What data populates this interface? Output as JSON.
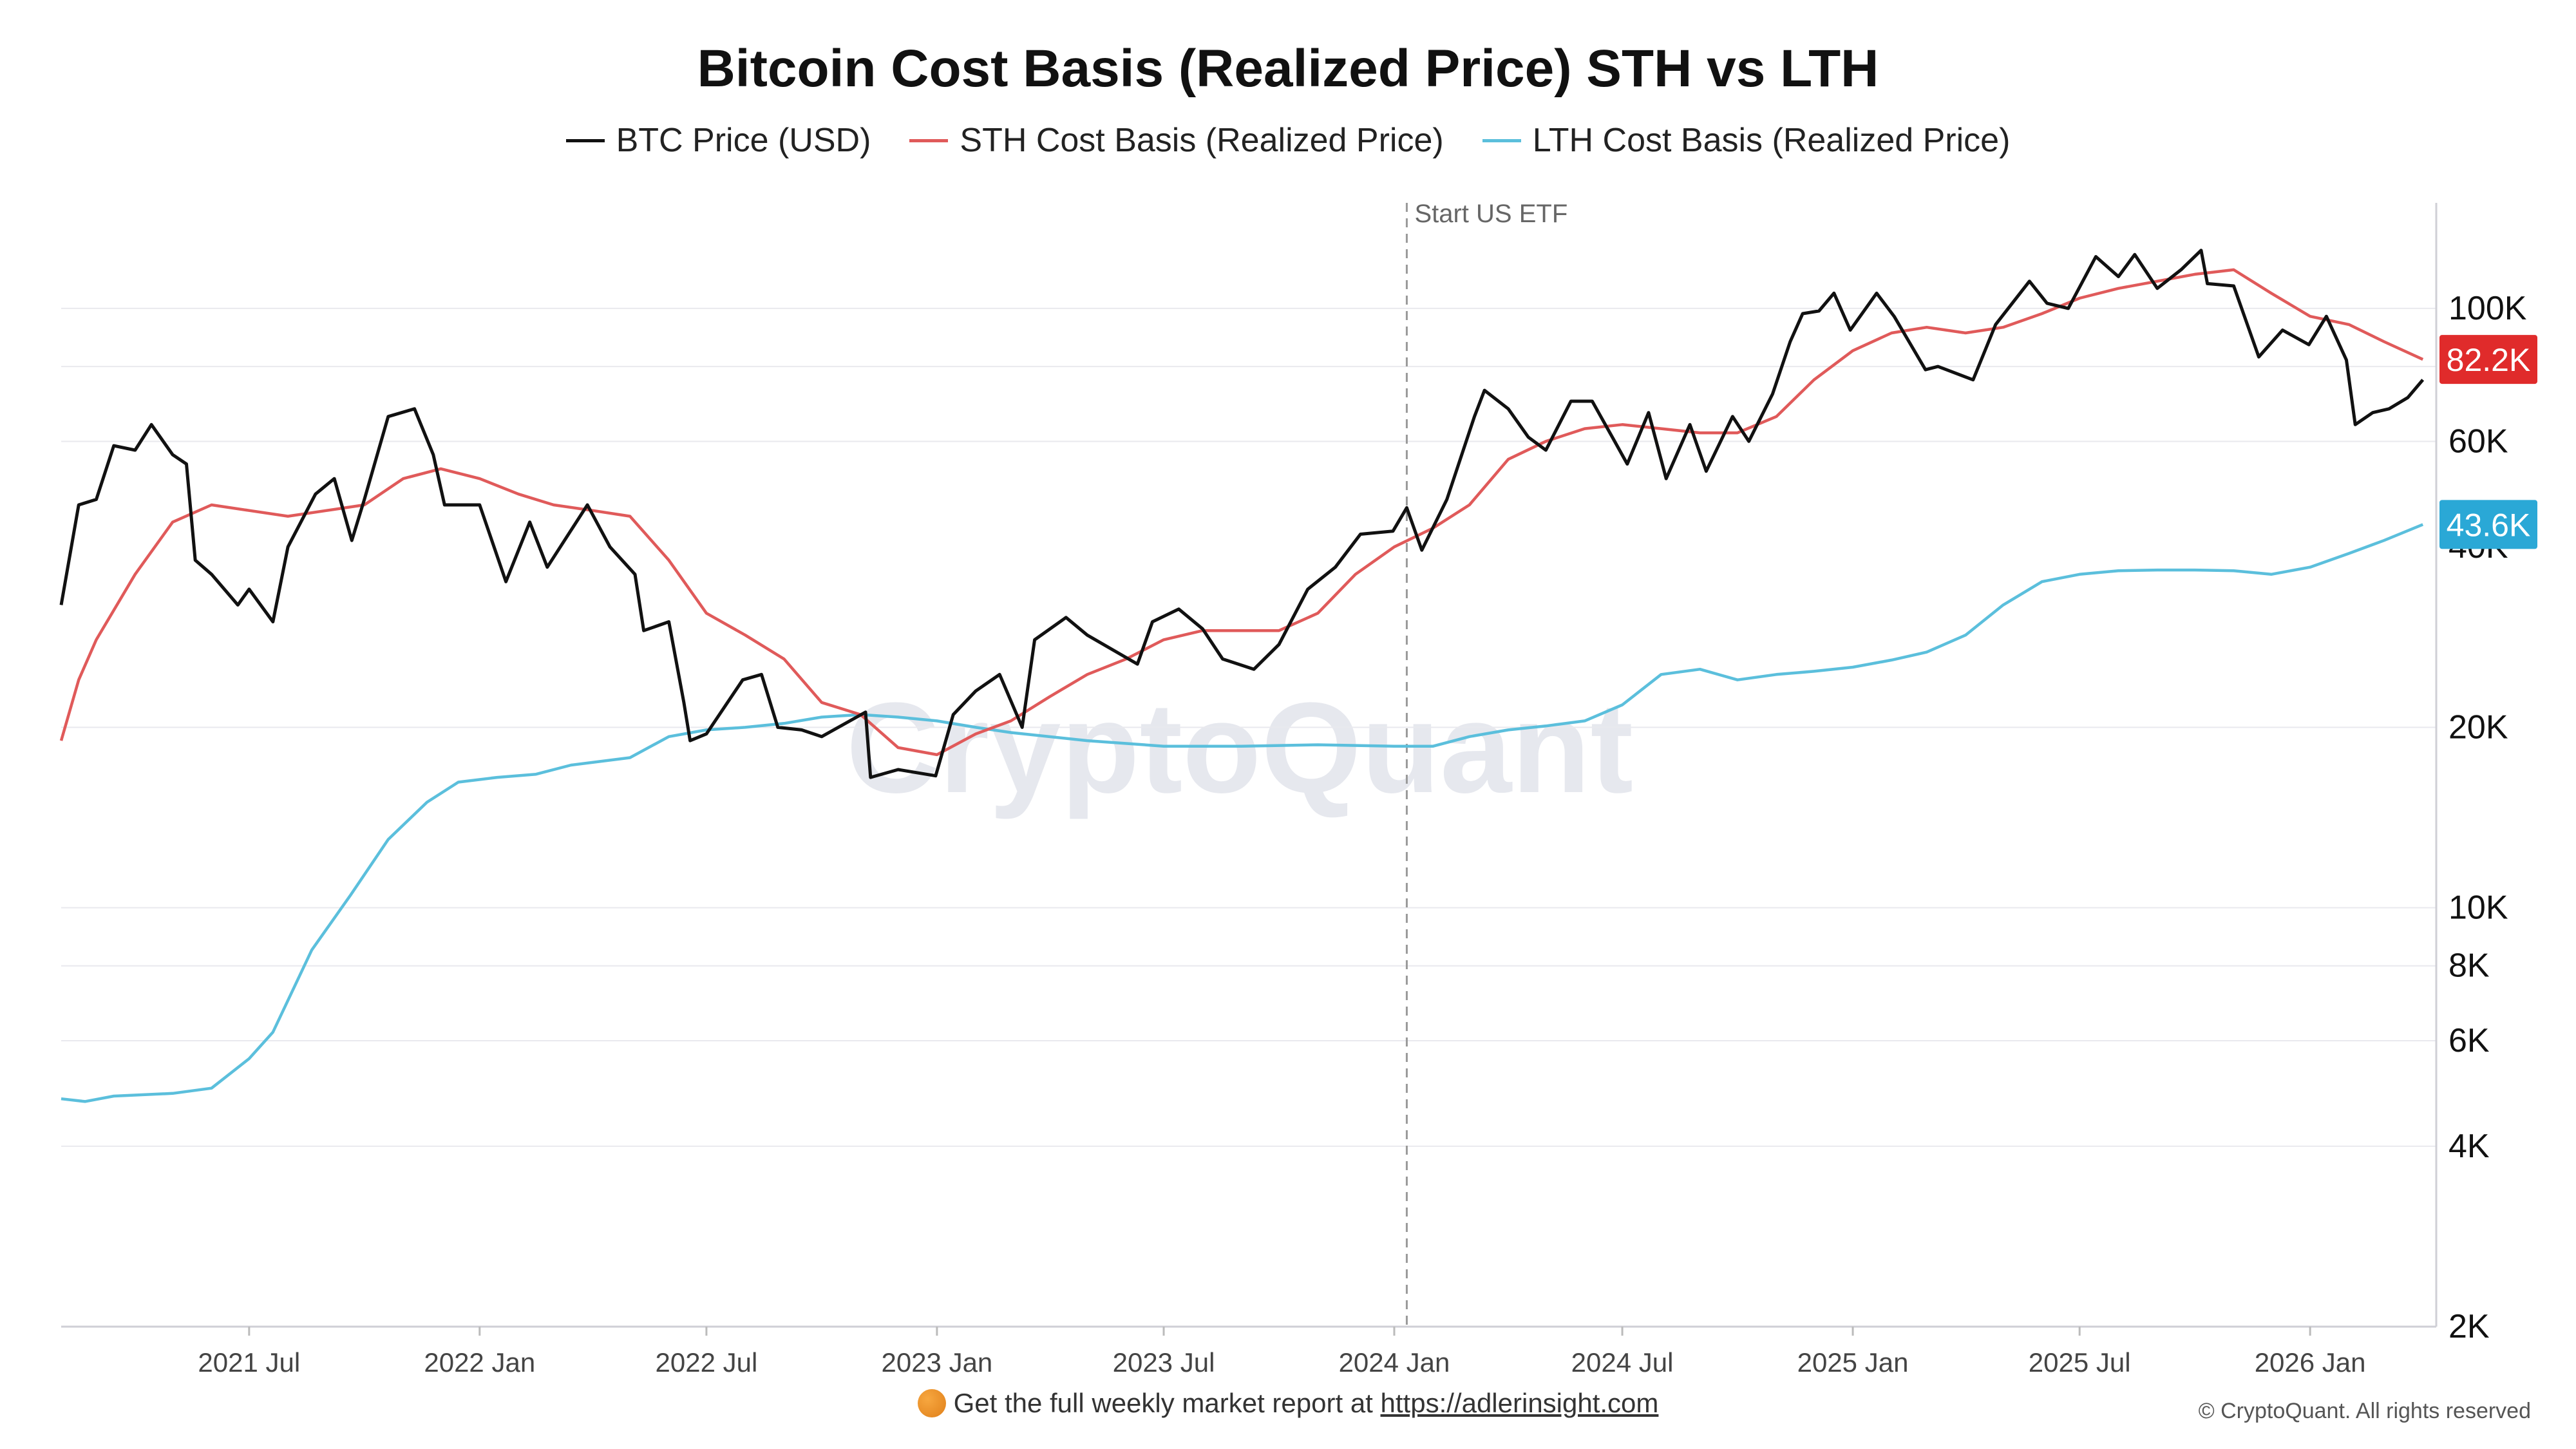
{
  "title": "Bitcoin Cost Basis (Realized Price) STH vs LTH",
  "legend": [
    {
      "label": "BTC Price (USD)",
      "color": "#111111"
    },
    {
      "label": "STH Cost Basis (Realized Price)",
      "color": "#e05a5a"
    },
    {
      "label": "LTH Cost Basis (Realized Price)",
      "color": "#5bbfdc"
    }
  ],
  "footer": {
    "note": "Get the full weekly market report at",
    "link": "https://adlerinsight.com",
    "icon": "bitcoin-coin-icon",
    "copyright": "© CryptoQuant. All rights reserved"
  },
  "watermark": "CryptoQuant",
  "chart_data": {
    "type": "line",
    "y_scale": "log",
    "ylim": [
      2000,
      150000
    ],
    "xlim": [
      "2021-02-01",
      "2026-04-05"
    ],
    "x_ticks": [
      {
        "date": "2021-07-01",
        "label": "2021 Jul"
      },
      {
        "date": "2022-01-01",
        "label": "2022 Jan"
      },
      {
        "date": "2022-07-01",
        "label": "2022 Jul"
      },
      {
        "date": "2023-01-01",
        "label": "2023 Jan"
      },
      {
        "date": "2023-07-01",
        "label": "2023 Jul"
      },
      {
        "date": "2024-01-01",
        "label": "2024 Jan"
      },
      {
        "date": "2024-07-01",
        "label": "2024 Jul"
      },
      {
        "date": "2025-01-01",
        "label": "2025 Jan"
      },
      {
        "date": "2025-07-01",
        "label": "2025 Jul"
      },
      {
        "date": "2026-01-01",
        "label": "2026 Jan"
      }
    ],
    "y_ticks": [
      {
        "value": 100000,
        "label": "100K"
      },
      {
        "value": 60000,
        "label": "60K"
      },
      {
        "value": 40000,
        "label": "40K"
      },
      {
        "value": 20000,
        "label": "20K"
      },
      {
        "value": 10000,
        "label": "10K"
      },
      {
        "value": 8000,
        "label": "8K"
      },
      {
        "value": 6000,
        "label": "6K"
      },
      {
        "value": 4000,
        "label": "4K"
      },
      {
        "value": 2000,
        "label": "2K"
      }
    ],
    "gridlines": [
      100000,
      80000,
      60000,
      20000,
      10000,
      8000,
      6000,
      4000
    ],
    "annotation": {
      "date": "2024-01-11",
      "label": "Start US ETF"
    },
    "end_labels": [
      {
        "series": "STH Cost Basis (Realized Price)",
        "value": 82200,
        "label": "82.2K",
        "color": "#e02b2b"
      },
      {
        "series": "LTH Cost Basis (Realized Price)",
        "value": 43600,
        "label": "43.6K",
        "color": "#2aa8d6"
      }
    ],
    "series": [
      {
        "name": "BTC Price (USD)",
        "color": "#111111",
        "points": [
          [
            "2021-02-01",
            32000
          ],
          [
            "2021-02-15",
            47000
          ],
          [
            "2021-03-01",
            48000
          ],
          [
            "2021-03-15",
            59000
          ],
          [
            "2021-04-01",
            58000
          ],
          [
            "2021-04-14",
            64000
          ],
          [
            "2021-05-01",
            57000
          ],
          [
            "2021-05-12",
            55000
          ],
          [
            "2021-05-19",
            38000
          ],
          [
            "2021-06-01",
            36000
          ],
          [
            "2021-06-22",
            32000
          ],
          [
            "2021-07-01",
            34000
          ],
          [
            "2021-07-20",
            30000
          ],
          [
            "2021-08-01",
            40000
          ],
          [
            "2021-08-23",
            49000
          ],
          [
            "2021-09-07",
            52000
          ],
          [
            "2021-09-21",
            41000
          ],
          [
            "2021-10-01",
            48000
          ],
          [
            "2021-10-20",
            66000
          ],
          [
            "2021-11-10",
            68000
          ],
          [
            "2021-11-25",
            57000
          ],
          [
            "2021-12-04",
            47000
          ],
          [
            "2021-12-20",
            47000
          ],
          [
            "2022-01-01",
            47000
          ],
          [
            "2022-01-22",
            35000
          ],
          [
            "2022-02-10",
            44000
          ],
          [
            "2022-02-24",
            37000
          ],
          [
            "2022-03-28",
            47000
          ],
          [
            "2022-04-15",
            40000
          ],
          [
            "2022-05-05",
            36000
          ],
          [
            "2022-05-12",
            29000
          ],
          [
            "2022-06-01",
            30000
          ],
          [
            "2022-06-13",
            22000
          ],
          [
            "2022-06-18",
            19000
          ],
          [
            "2022-07-01",
            19500
          ],
          [
            "2022-07-30",
            24000
          ],
          [
            "2022-08-14",
            24500
          ],
          [
            "2022-08-27",
            20000
          ],
          [
            "2022-09-15",
            19800
          ],
          [
            "2022-10-01",
            19300
          ],
          [
            "2022-11-05",
            21200
          ],
          [
            "2022-11-09",
            16500
          ],
          [
            "2022-12-01",
            17000
          ],
          [
            "2022-12-31",
            16600
          ],
          [
            "2023-01-14",
            21000
          ],
          [
            "2023-02-01",
            23000
          ],
          [
            "2023-02-20",
            24500
          ],
          [
            "2023-03-10",
            20000
          ],
          [
            "2023-03-20",
            28000
          ],
          [
            "2023-04-14",
            30500
          ],
          [
            "2023-05-01",
            28500
          ],
          [
            "2023-06-10",
            25500
          ],
          [
            "2023-06-22",
            30000
          ],
          [
            "2023-07-13",
            31500
          ],
          [
            "2023-08-01",
            29200
          ],
          [
            "2023-08-17",
            26000
          ],
          [
            "2023-09-11",
            25000
          ],
          [
            "2023-10-01",
            27500
          ],
          [
            "2023-10-24",
            34000
          ],
          [
            "2023-11-15",
            37000
          ],
          [
            "2023-12-05",
            42000
          ],
          [
            "2023-12-31",
            42500
          ],
          [
            "2024-01-11",
            46500
          ],
          [
            "2024-01-23",
            39500
          ],
          [
            "2024-02-12",
            48000
          ],
          [
            "2024-03-05",
            66000
          ],
          [
            "2024-03-13",
            73000
          ],
          [
            "2024-04-01",
            68000
          ],
          [
            "2024-04-17",
            61000
          ],
          [
            "2024-05-01",
            58000
          ],
          [
            "2024-05-21",
            70000
          ],
          [
            "2024-06-07",
            70000
          ],
          [
            "2024-06-24",
            60500
          ],
          [
            "2024-07-05",
            55000
          ],
          [
            "2024-07-22",
            67000
          ],
          [
            "2024-08-05",
            52000
          ],
          [
            "2024-08-24",
            64000
          ],
          [
            "2024-09-06",
            53500
          ],
          [
            "2024-09-27",
            66000
          ],
          [
            "2024-10-10",
            60000
          ],
          [
            "2024-10-29",
            72000
          ],
          [
            "2024-11-12",
            88000
          ],
          [
            "2024-11-22",
            98000
          ],
          [
            "2024-12-05",
            99000
          ],
          [
            "2024-12-17",
            106000
          ],
          [
            "2024-12-30",
            92000
          ],
          [
            "2025-01-20",
            106000
          ],
          [
            "2025-02-03",
            97000
          ],
          [
            "2025-02-28",
            79000
          ],
          [
            "2025-03-10",
            80000
          ],
          [
            "2025-04-07",
            76000
          ],
          [
            "2025-04-25",
            94000
          ],
          [
            "2025-05-22",
            111000
          ],
          [
            "2025-06-05",
            102000
          ],
          [
            "2025-06-22",
            100000
          ],
          [
            "2025-07-14",
            122000
          ],
          [
            "2025-08-01",
            113000
          ],
          [
            "2025-08-14",
            123000
          ],
          [
            "2025-09-01",
            108000
          ],
          [
            "2025-09-20",
            116000
          ],
          [
            "2025-10-06",
            125000
          ],
          [
            "2025-10-11",
            110000
          ],
          [
            "2025-11-01",
            109000
          ],
          [
            "2025-11-21",
            83000
          ],
          [
            "2025-12-10",
            92000
          ],
          [
            "2025-12-31",
            87000
          ],
          [
            "2026-01-14",
            97000
          ],
          [
            "2026-01-30",
            82000
          ],
          [
            "2026-02-06",
            64000
          ],
          [
            "2026-02-20",
            67000
          ],
          [
            "2026-03-05",
            68000
          ],
          [
            "2026-03-20",
            71000
          ],
          [
            "2026-04-01",
            76000
          ]
        ]
      },
      {
        "name": "STH Cost Basis (Realized Price)",
        "color": "#e05a5a",
        "points": [
          [
            "2021-02-01",
            19000
          ],
          [
            "2021-02-15",
            24000
          ],
          [
            "2021-03-01",
            28000
          ],
          [
            "2021-04-01",
            36000
          ],
          [
            "2021-05-01",
            44000
          ],
          [
            "2021-06-01",
            47000
          ],
          [
            "2021-07-01",
            46000
          ],
          [
            "2021-08-01",
            45000
          ],
          [
            "2021-09-01",
            46000
          ],
          [
            "2021-10-01",
            47000
          ],
          [
            "2021-11-01",
            52000
          ],
          [
            "2021-12-01",
            54000
          ],
          [
            "2022-01-01",
            52000
          ],
          [
            "2022-02-01",
            49000
          ],
          [
            "2022-03-01",
            47000
          ],
          [
            "2022-04-01",
            46000
          ],
          [
            "2022-05-01",
            45000
          ],
          [
            "2022-06-01",
            38000
          ],
          [
            "2022-07-01",
            31000
          ],
          [
            "2022-08-01",
            28500
          ],
          [
            "2022-09-01",
            26000
          ],
          [
            "2022-10-01",
            22000
          ],
          [
            "2022-11-01",
            21000
          ],
          [
            "2022-12-01",
            18500
          ],
          [
            "2023-01-01",
            18000
          ],
          [
            "2023-02-01",
            19500
          ],
          [
            "2023-03-01",
            20500
          ],
          [
            "2023-04-01",
            22500
          ],
          [
            "2023-05-01",
            24500
          ],
          [
            "2023-06-01",
            26000
          ],
          [
            "2023-07-01",
            28000
          ],
          [
            "2023-08-01",
            29000
          ],
          [
            "2023-09-01",
            29000
          ],
          [
            "2023-10-01",
            29000
          ],
          [
            "2023-11-01",
            31000
          ],
          [
            "2023-12-01",
            36000
          ],
          [
            "2024-01-01",
            40000
          ],
          [
            "2024-02-01",
            43000
          ],
          [
            "2024-03-01",
            47000
          ],
          [
            "2024-04-01",
            56000
          ],
          [
            "2024-05-01",
            60000
          ],
          [
            "2024-06-01",
            63000
          ],
          [
            "2024-07-01",
            64000
          ],
          [
            "2024-08-01",
            63000
          ],
          [
            "2024-09-01",
            62000
          ],
          [
            "2024-10-01",
            62000
          ],
          [
            "2024-11-01",
            66000
          ],
          [
            "2024-12-01",
            76000
          ],
          [
            "2025-01-01",
            85000
          ],
          [
            "2025-02-01",
            91000
          ],
          [
            "2025-03-01",
            93000
          ],
          [
            "2025-04-01",
            91000
          ],
          [
            "2025-05-01",
            93000
          ],
          [
            "2025-06-01",
            98000
          ],
          [
            "2025-07-01",
            104000
          ],
          [
            "2025-08-01",
            108000
          ],
          [
            "2025-09-01",
            111000
          ],
          [
            "2025-10-01",
            114000
          ],
          [
            "2025-11-01",
            116000
          ],
          [
            "2025-12-01",
            106000
          ],
          [
            "2026-01-01",
            97000
          ],
          [
            "2026-02-01",
            94000
          ],
          [
            "2026-03-01",
            88000
          ],
          [
            "2026-04-01",
            82200
          ]
        ]
      },
      {
        "name": "LTH Cost Basis (Realized Price)",
        "color": "#5bbfdc",
        "points": [
          [
            "2021-02-01",
            4800
          ],
          [
            "2021-02-20",
            4750
          ],
          [
            "2021-03-15",
            4850
          ],
          [
            "2021-05-01",
            4900
          ],
          [
            "2021-06-01",
            5000
          ],
          [
            "2021-07-01",
            5600
          ],
          [
            "2021-07-20",
            6200
          ],
          [
            "2021-08-20",
            8500
          ],
          [
            "2021-09-20",
            10500
          ],
          [
            "2021-10-20",
            13000
          ],
          [
            "2021-11-20",
            15000
          ],
          [
            "2021-12-15",
            16200
          ],
          [
            "2022-01-15",
            16500
          ],
          [
            "2022-02-15",
            16700
          ],
          [
            "2022-03-15",
            17300
          ],
          [
            "2022-05-01",
            17800
          ],
          [
            "2022-06-01",
            19300
          ],
          [
            "2022-07-01",
            19800
          ],
          [
            "2022-08-01",
            20000
          ],
          [
            "2022-09-01",
            20300
          ],
          [
            "2022-10-01",
            20800
          ],
          [
            "2022-11-01",
            21000
          ],
          [
            "2022-12-01",
            20800
          ],
          [
            "2023-01-01",
            20500
          ],
          [
            "2023-02-01",
            20000
          ],
          [
            "2023-03-01",
            19600
          ],
          [
            "2023-05-01",
            19000
          ],
          [
            "2023-07-01",
            18600
          ],
          [
            "2023-09-01",
            18600
          ],
          [
            "2023-11-01",
            18700
          ],
          [
            "2024-01-01",
            18600
          ],
          [
            "2024-02-01",
            18600
          ],
          [
            "2024-03-01",
            19300
          ],
          [
            "2024-04-01",
            19800
          ],
          [
            "2024-05-01",
            20100
          ],
          [
            "2024-06-01",
            20500
          ],
          [
            "2024-07-01",
            21800
          ],
          [
            "2024-08-01",
            24500
          ],
          [
            "2024-09-01",
            25000
          ],
          [
            "2024-10-01",
            24000
          ],
          [
            "2024-11-01",
            24500
          ],
          [
            "2024-12-01",
            24800
          ],
          [
            "2025-01-01",
            25200
          ],
          [
            "2025-02-01",
            25900
          ],
          [
            "2025-03-01",
            26700
          ],
          [
            "2025-04-01",
            28500
          ],
          [
            "2025-05-01",
            32000
          ],
          [
            "2025-06-01",
            35000
          ],
          [
            "2025-07-01",
            36000
          ],
          [
            "2025-08-01",
            36500
          ],
          [
            "2025-09-01",
            36600
          ],
          [
            "2025-10-01",
            36600
          ],
          [
            "2025-11-01",
            36500
          ],
          [
            "2025-12-01",
            36000
          ],
          [
            "2026-01-01",
            37000
          ],
          [
            "2026-02-01",
            39000
          ],
          [
            "2026-03-01",
            41000
          ],
          [
            "2026-04-01",
            43600
          ]
        ]
      }
    ]
  }
}
